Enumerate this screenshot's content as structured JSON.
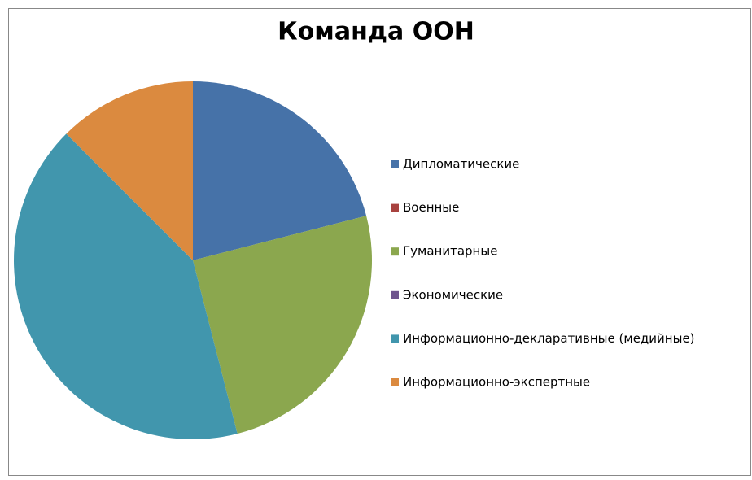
{
  "chart_data": {
    "type": "pie",
    "title": "Команда ООН",
    "categories": [
      "Дипломатические",
      "Военные",
      "Гуманитарные",
      "Экономические",
      "Информационно-декларативные (медийные)",
      "Информационно-экспертные"
    ],
    "values": [
      21,
      0,
      25,
      0,
      41.5,
      12.5
    ],
    "colors": [
      "#4672a8",
      "#a8423f",
      "#8ba74e",
      "#6e548d",
      "#4196ad",
      "#db8a3f"
    ],
    "legend": "right"
  }
}
